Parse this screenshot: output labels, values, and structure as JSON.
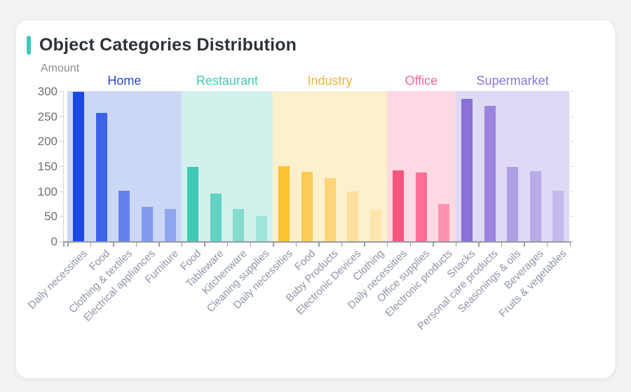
{
  "card": {
    "title": "Object Categories Distribution",
    "accent_color": "#3ec8b7"
  },
  "chart_data": {
    "type": "bar",
    "title": "Object Categories Distribution",
    "ylabel": "Amount",
    "xlabel": "",
    "ylim": [
      0,
      300
    ],
    "yticks": [
      0,
      50,
      100,
      150,
      200,
      250,
      300
    ],
    "legend_position": "none",
    "grid": false,
    "groups": [
      {
        "name": "Home",
        "label_color": "#2b46d9",
        "band_color": "#ccd7f6",
        "bars": [
          {
            "label": "Daily necessities",
            "value": 298,
            "color": "#1b4ae2"
          },
          {
            "label": "Food",
            "value": 257,
            "color": "#3d63e6"
          },
          {
            "label": "Clothing & textiles",
            "value": 101,
            "color": "#6581eb"
          },
          {
            "label": "Electrical appliances",
            "value": 68,
            "color": "#8199ee"
          },
          {
            "label": "Furniture",
            "value": 64,
            "color": "#8fa5f0"
          }
        ]
      },
      {
        "name": "Restaurant",
        "label_color": "#41cbb7",
        "band_color": "#d2f1ec",
        "bars": [
          {
            "label": "Food",
            "value": 148,
            "color": "#3fc9b5"
          },
          {
            "label": "Tableware",
            "value": 96,
            "color": "#62d2c2"
          },
          {
            "label": "Kitchenware",
            "value": 64,
            "color": "#83dccd"
          },
          {
            "label": "Cleaning supplies",
            "value": 50,
            "color": "#9fe4d9"
          }
        ]
      },
      {
        "name": "Industry",
        "label_color": "#edb43e",
        "band_color": "#fdf0cd",
        "bars": [
          {
            "label": "Daily necessities",
            "value": 150,
            "color": "#fcc22f"
          },
          {
            "label": "Food",
            "value": 139,
            "color": "#fccc55"
          },
          {
            "label": "Baby Products",
            "value": 126,
            "color": "#fdd477"
          },
          {
            "label": "Electronic Devices",
            "value": 99,
            "color": "#fde09e"
          },
          {
            "label": "Clothing",
            "value": 63,
            "color": "#fde6ae"
          }
        ]
      },
      {
        "name": "Office",
        "label_color": "#f96590",
        "band_color": "#fcd9e3",
        "bars": [
          {
            "label": "Daily necessities",
            "value": 142,
            "color": "#f95380"
          },
          {
            "label": "Office supplies",
            "value": 138,
            "color": "#fa7094"
          },
          {
            "label": "Electronic products",
            "value": 75,
            "color": "#fb94ad"
          }
        ]
      },
      {
        "name": "Supermarket",
        "label_color": "#8d74db",
        "band_color": "#ded9f5",
        "bars": [
          {
            "label": "Snacks",
            "value": 284,
            "color": "#8a70d9"
          },
          {
            "label": "Personal care products",
            "value": 270,
            "color": "#9b84de"
          },
          {
            "label": "Seasonings & oils",
            "value": 148,
            "color": "#af9fe4"
          },
          {
            "label": "Beverages",
            "value": 140,
            "color": "#b9abe7"
          },
          {
            "label": "Fruits & vegetables",
            "value": 101,
            "color": "#c5b9eb"
          }
        ]
      }
    ]
  }
}
